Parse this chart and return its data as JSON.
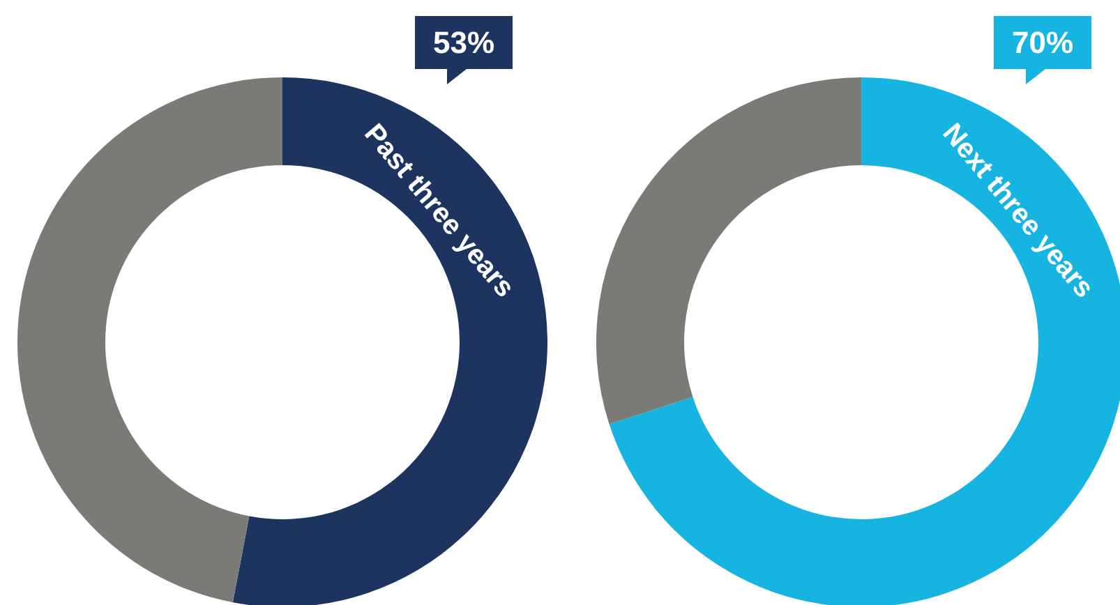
{
  "chart_data": [
    {
      "type": "donut",
      "categories": [
        "Past three years",
        null
      ],
      "values": [
        53,
        47
      ],
      "colors": [
        "#1d3461",
        "#7a7a76"
      ],
      "value_labels": [
        "53%",
        null
      ]
    },
    {
      "type": "donut",
      "categories": [
        "Next three years",
        null
      ],
      "values": [
        70,
        30
      ],
      "colors": [
        "#16b4e0",
        "#7a7a76"
      ],
      "value_labels": [
        "70%",
        null
      ]
    }
  ]
}
